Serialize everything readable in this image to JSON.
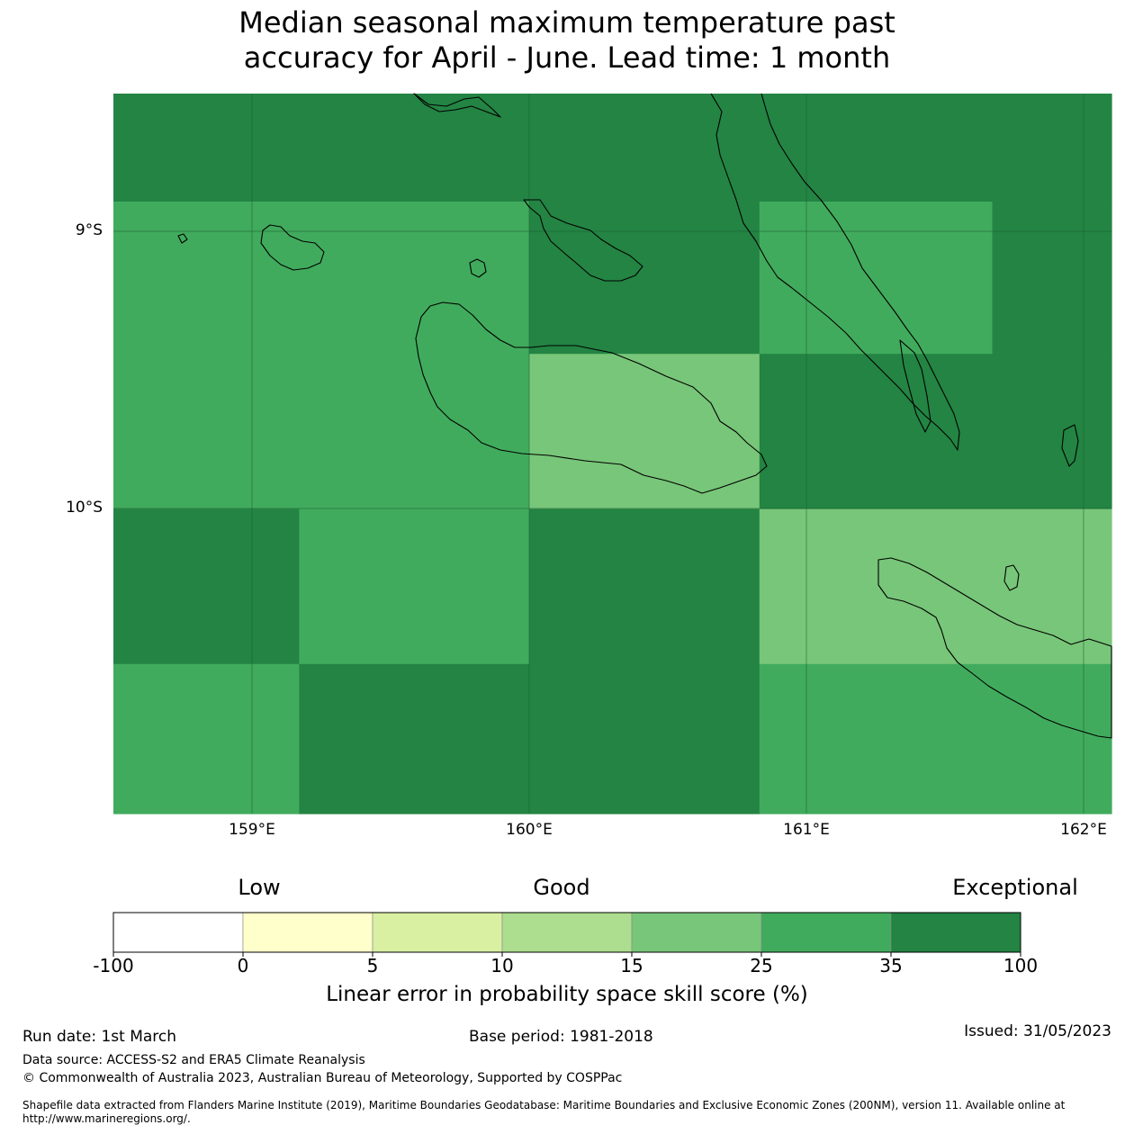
{
  "title": {
    "line1": "Median seasonal maximum temperature past",
    "line2": "accuracy for April - June. Lead time: 1 month"
  },
  "map": {
    "lat_labels": [
      "9°S",
      "10°S"
    ],
    "lon_labels": [
      "159°E",
      "160°E",
      "161°E",
      "162°E"
    ],
    "lon_range": [
      158.5,
      162.1
    ],
    "lat_range": [
      -8.5,
      -11.1
    ],
    "cells": [
      {
        "lon": [
          158.5,
          162.1
        ],
        "lat": [
          -8.5,
          -8.89
        ],
        "bin": 6
      },
      {
        "lon": [
          158.5,
          160.0
        ],
        "lat": [
          -8.89,
          -10.0
        ],
        "bin": 5
      },
      {
        "lon": [
          160.0,
          160.83
        ],
        "lat": [
          -8.89,
          -9.44
        ],
        "bin": 6
      },
      {
        "lon": [
          160.83,
          161.67
        ],
        "lat": [
          -8.89,
          -9.44
        ],
        "bin": 5
      },
      {
        "lon": [
          161.67,
          162.1
        ],
        "lat": [
          -8.89,
          -9.44
        ],
        "bin": 6
      },
      {
        "lon": [
          160.0,
          160.83
        ],
        "lat": [
          -9.44,
          -10.0
        ],
        "bin": 4
      },
      {
        "lon": [
          160.83,
          162.1
        ],
        "lat": [
          -9.44,
          -10.0
        ],
        "bin": 6
      },
      {
        "lon": [
          158.5,
          159.17
        ],
        "lat": [
          -10.0,
          -10.56
        ],
        "bin": 6
      },
      {
        "lon": [
          159.17,
          160.0
        ],
        "lat": [
          -10.0,
          -10.56
        ],
        "bin": 5
      },
      {
        "lon": [
          160.0,
          160.83
        ],
        "lat": [
          -10.0,
          -11.1
        ],
        "bin": 6
      },
      {
        "lon": [
          160.83,
          162.1
        ],
        "lat": [
          -10.0,
          -10.56
        ],
        "bin": 4
      },
      {
        "lon": [
          158.5,
          159.17
        ],
        "lat": [
          -10.56,
          -11.1
        ],
        "bin": 5
      },
      {
        "lon": [
          159.17,
          160.0
        ],
        "lat": [
          -10.56,
          -11.1
        ],
        "bin": 6
      },
      {
        "lon": [
          160.83,
          162.1
        ],
        "lat": [
          -10.56,
          -11.1
        ],
        "bin": 5
      }
    ]
  },
  "legend": {
    "categories": [
      "Low",
      "Good",
      "Exceptional"
    ],
    "ticks": [
      "-100",
      "0",
      "5",
      "10",
      "15",
      "25",
      "35",
      "100"
    ],
    "colors": [
      "#ffffff",
      "#ffffcc",
      "#d9f0a3",
      "#addd8e",
      "#78c679",
      "#41ab5d",
      "#238443"
    ],
    "title": "Linear error in probability space skill score (%)"
  },
  "footer": {
    "run_date": "Run date: 1st March",
    "base_period": "Base period: 1981-2018",
    "issued": "Issued: 31/05/2023",
    "data_source": "Data source: ACCESS-S2 and ERA5 Climate Reanalysis",
    "copyright": "© Commonwealth of Australia 2023, Australian Bureau of Meteorology, Supported by COSPPac",
    "shapefile": "Shapefile data extracted from Flanders Marine Institute (2019), Maritime Boundaries Geodatabase: Maritime Boundaries and Exclusive Economic Zones (200NM), version 11. Available online at http://www.marineregions.org/."
  }
}
